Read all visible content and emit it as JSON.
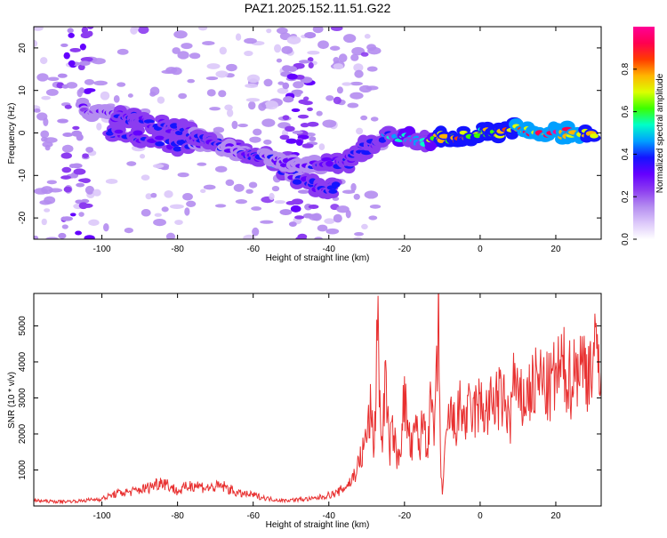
{
  "title": "PAZ1.2025.152.11.51.G22",
  "colors": {
    "snr_line": "#e83030",
    "axis": "#000000",
    "colormap": [
      "#ffffff",
      "#dcc8fa",
      "#b48cf0",
      "#8c3cf0",
      "#6400ff",
      "#1414ff",
      "#00a0ff",
      "#00ffc8",
      "#3cff00",
      "#dcff00",
      "#ffb400",
      "#ff3c00",
      "#ff0050",
      "#ff0096"
    ]
  },
  "chart_data": [
    {
      "type": "heatmap",
      "xlabel": "Height of straight line (km)",
      "ylabel": "Frequency (Hz)",
      "xlim": [
        -118,
        32
      ],
      "ylim": [
        -25,
        25
      ],
      "xticks": [
        -100,
        -80,
        -60,
        -40,
        -20,
        0,
        20
      ],
      "yticks": [
        -20,
        -10,
        0,
        10,
        20
      ],
      "colorbar": {
        "label": "Normalized spectral amplitude",
        "range": [
          0,
          1
        ],
        "ticks": [
          0.0,
          0.2,
          0.4,
          0.6,
          0.8
        ]
      },
      "signal_track": [
        {
          "x": -105,
          "y": 6,
          "amp": 0.25
        },
        {
          "x": -100,
          "y": 5,
          "amp": 0.32
        },
        {
          "x": -95,
          "y": 4,
          "amp": 0.35
        },
        {
          "x": -90,
          "y": 3,
          "amp": 0.38
        },
        {
          "x": -85,
          "y": 2,
          "amp": 0.35
        },
        {
          "x": -80,
          "y": 1,
          "amp": 0.37
        },
        {
          "x": -75,
          "y": -1,
          "amp": 0.34
        },
        {
          "x": -70,
          "y": -2,
          "amp": 0.36
        },
        {
          "x": -65,
          "y": -4,
          "amp": 0.32
        },
        {
          "x": -60,
          "y": -5,
          "amp": 0.36
        },
        {
          "x": -55,
          "y": -6,
          "amp": 0.33
        },
        {
          "x": -50,
          "y": -7,
          "amp": 0.3
        },
        {
          "x": -45,
          "y": -8,
          "amp": 0.32
        },
        {
          "x": -40,
          "y": -7,
          "amp": 0.36
        },
        {
          "x": -35,
          "y": -7,
          "amp": 0.37
        },
        {
          "x": -30,
          "y": -3,
          "amp": 0.35
        },
        {
          "x": -25,
          "y": -1,
          "amp": 0.4
        },
        {
          "x": -20,
          "y": -1,
          "amp": 0.55
        },
        {
          "x": -15,
          "y": -2,
          "amp": 0.45
        },
        {
          "x": -10,
          "y": -1,
          "amp": 0.75
        },
        {
          "x": -5,
          "y": -1,
          "amp": 0.85
        },
        {
          "x": 0,
          "y": 0,
          "amp": 0.7
        },
        {
          "x": 5,
          "y": 0,
          "amp": 0.8
        },
        {
          "x": 10,
          "y": 1,
          "amp": 0.85
        },
        {
          "x": 15,
          "y": 0,
          "amp": 0.9
        },
        {
          "x": 20,
          "y": 0,
          "amp": 0.92
        },
        {
          "x": 25,
          "y": 0,
          "amp": 0.9
        },
        {
          "x": 30,
          "y": 0,
          "amp": 0.75
        }
      ],
      "secondary_track": [
        {
          "x": -98,
          "y": 0,
          "amp": 0.35
        },
        {
          "x": -90,
          "y": -1,
          "amp": 0.37
        },
        {
          "x": -80,
          "y": -3,
          "amp": 0.35
        },
        {
          "x": -72,
          "y": -2,
          "amp": 0.33
        },
        {
          "x": -65,
          "y": -3,
          "amp": 0.35
        },
        {
          "x": -58,
          "y": -6,
          "amp": 0.5
        },
        {
          "x": -50,
          "y": -10,
          "amp": 0.32
        },
        {
          "x": -42,
          "y": -13,
          "amp": 0.4
        },
        {
          "x": -38,
          "y": -13,
          "amp": 0.38
        }
      ]
    },
    {
      "type": "line",
      "xlabel": "Height of straight line (km)",
      "ylabel": "SNR (10 * v/v)",
      "xlim": [
        -118,
        32
      ],
      "ylim": [
        0,
        5900
      ],
      "xticks": [
        -100,
        -80,
        -60,
        -40,
        -20,
        0,
        20
      ],
      "yticks": [
        1000,
        2000,
        3000,
        4000,
        5000
      ],
      "series": [
        {
          "x": [
            -118,
            -112,
            -106,
            -100,
            -96,
            -92,
            -88,
            -84,
            -80,
            -76,
            -72,
            -68,
            -64,
            -60,
            -56,
            -52,
            -48,
            -44,
            -40,
            -38,
            -36,
            -34,
            -32,
            -31,
            -30,
            -29,
            -28,
            -27.5,
            -27,
            -26.5,
            -26,
            -25,
            -24,
            -23,
            -22,
            -21,
            -20,
            -19,
            -18,
            -17,
            -16,
            -15,
            -14,
            -13,
            -12,
            -11,
            -10.5,
            -10,
            -9,
            -8,
            -7,
            -6,
            -5,
            -4,
            -3,
            -2,
            -1,
            0,
            2,
            4,
            6,
            8,
            9,
            10,
            12,
            14,
            16,
            18,
            20,
            22,
            24,
            26,
            28,
            30,
            32
          ],
          "y": [
            150,
            120,
            140,
            200,
            350,
            400,
            500,
            700,
            400,
            600,
            500,
            550,
            350,
            300,
            200,
            150,
            180,
            200,
            300,
            350,
            500,
            700,
            1200,
            1500,
            2000,
            2600,
            1600,
            3500,
            5900,
            2500,
            1800,
            3500,
            1500,
            2200,
            1200,
            1800,
            3000,
            2000,
            1500,
            2200,
            1600,
            2500,
            1700,
            2800,
            2000,
            5000,
            1500,
            300,
            1800,
            2600,
            2200,
            2400,
            2800,
            2300,
            2600,
            2500,
            2700,
            2800,
            2600,
            3000,
            2900,
            2400,
            3700,
            2800,
            3000,
            3300,
            3500,
            3200,
            3600,
            3800,
            3500,
            4000,
            3800,
            4100,
            4200
          ]
        }
      ]
    }
  ]
}
